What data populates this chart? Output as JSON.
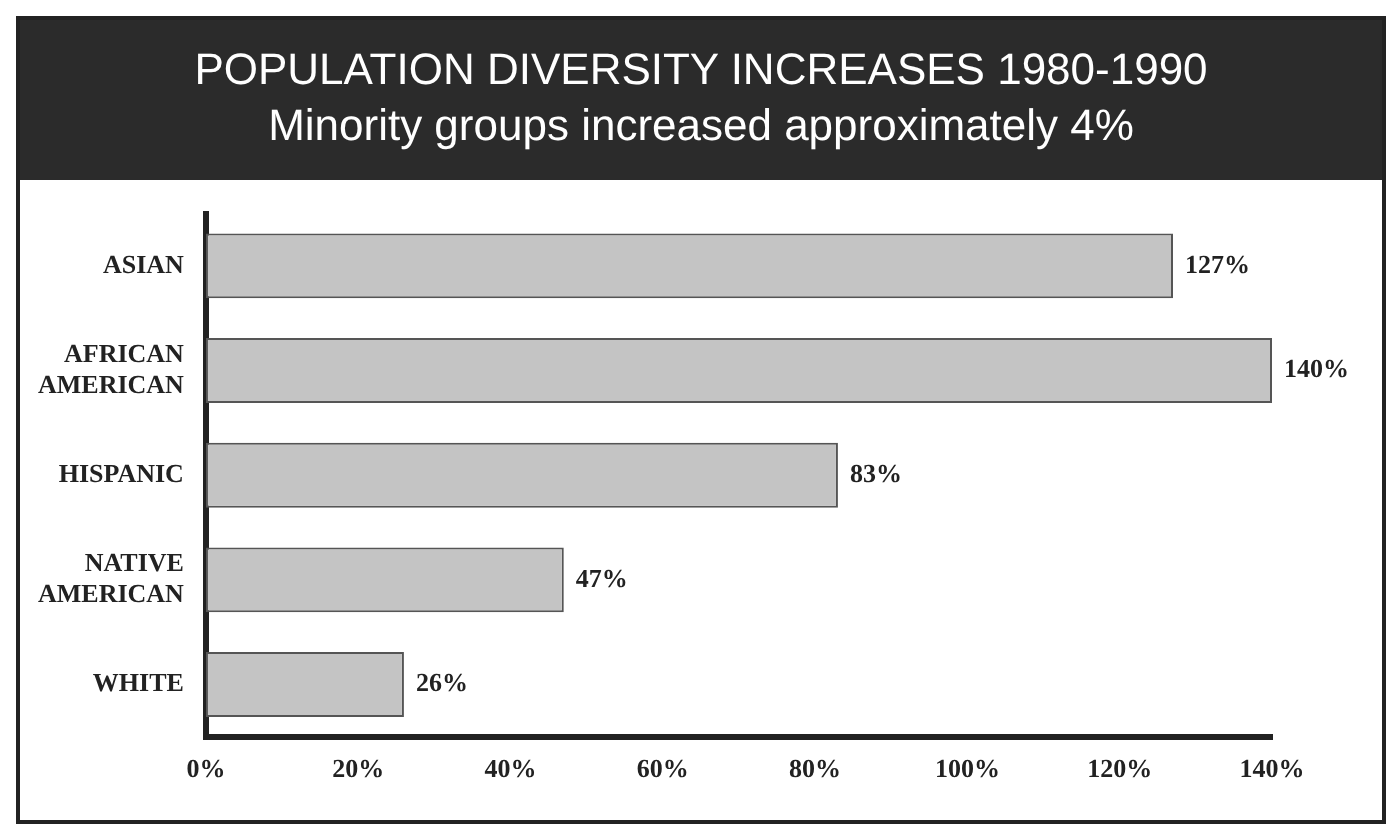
{
  "chart_data": {
    "type": "bar",
    "orientation": "horizontal",
    "title": "POPULATION DIVERSITY INCREASES 1980-1990",
    "subtitle": "Minority groups increased approximately 4%",
    "categories": [
      "ASIAN",
      "AFRICAN AMERICAN",
      "HISPANIC",
      "NATIVE AMERICAN",
      "WHITE"
    ],
    "values": [
      127,
      140,
      83,
      47,
      26
    ],
    "value_labels": [
      "127%",
      "140%",
      "83%",
      "47%",
      "26%"
    ],
    "color": "#c4c4c4",
    "xlim": [
      0,
      140
    ],
    "xticks": [
      {
        "value": 0,
        "label": "0%"
      },
      {
        "value": 20,
        "label": "20%"
      },
      {
        "value": 40,
        "label": "40%"
      },
      {
        "value": 60,
        "label": "60%"
      },
      {
        "value": 80,
        "label": "80%"
      },
      {
        "value": 100,
        "label": "100%"
      },
      {
        "value": 120,
        "label": "120%"
      },
      {
        "value": 140,
        "label": "140%"
      }
    ],
    "grid": false,
    "legend": false
  }
}
